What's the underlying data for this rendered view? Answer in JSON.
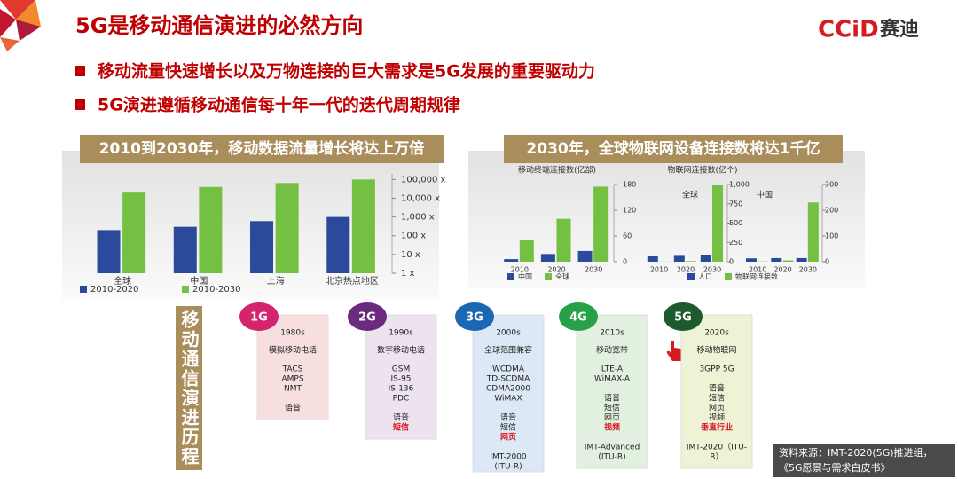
{
  "header": {
    "title": "5G是移动通信演进的必然方向",
    "logo": "CCiD",
    "logo_cn": "赛迪"
  },
  "bullets": [
    "移动流量快速增长以及万物连接的巨大需求是5G发展的重要驱动力",
    "5G演进遵循移动通信每十年一代的迭代周期规律"
  ],
  "banners": [
    "2010到2030年，移动数据流量增长将达上万倍",
    "2030年，全球物联网设备连接数将达1千亿"
  ],
  "chart_data": [
    {
      "type": "bar",
      "categories": [
        "全球",
        "中国",
        "上海",
        "北京热点地区"
      ],
      "series": [
        {
          "name": "2010-2020",
          "color": "#2c4a9c",
          "values": [
            200,
            300,
            600,
            1000
          ]
        },
        {
          "name": "2010-2030",
          "color": "#74c043",
          "values": [
            20000,
            40000,
            65000,
            100000
          ]
        }
      ],
      "ylim": [
        1,
        200000
      ],
      "yticks": [
        {
          "value": 1,
          "label": "1 x"
        },
        {
          "value": 10,
          "label": "10 x"
        },
        {
          "value": 100,
          "label": "100 x"
        },
        {
          "value": 1000,
          "label": "1,000 x"
        },
        {
          "value": 10000,
          "label": "10,000 x"
        },
        {
          "value": 100000,
          "label": "100,000 x"
        }
      ],
      "log": true,
      "legend": "bottom-left"
    },
    {
      "type": "bar",
      "title": "移动终端连接数(亿部)",
      "categories": [
        "2010",
        "2020",
        "2030"
      ],
      "series": [
        {
          "name": "中国",
          "color": "#2c4a9c",
          "values": [
            6,
            18,
            25
          ]
        },
        {
          "name": "全球",
          "color": "#74c043",
          "values": [
            50,
            100,
            175
          ]
        }
      ],
      "ylim": [
        0,
        180
      ],
      "yticks": [
        0,
        60,
        120,
        180
      ],
      "legend": "bottom-left"
    },
    {
      "type": "bar",
      "title": "物联网连接数(亿个)",
      "annotation": "全球",
      "categories": [
        "2010",
        "2020",
        "2030"
      ],
      "series": [
        {
          "name": "人口",
          "color": "#2c4a9c",
          "values": [
            69,
            76,
            85
          ]
        },
        {
          "name": "物联网连接数",
          "color": "#74c043",
          "values": [
            2,
            8,
            1000
          ]
        }
      ],
      "ylim": [
        0,
        1000
      ],
      "yticks": [
        0,
        250,
        500,
        750,
        {
          "value": 1000,
          "label": "1,000"
        }
      ],
      "legend": "bottom-left"
    },
    {
      "type": "bar",
      "annotation": "中国",
      "categories": [
        "2010",
        "2020",
        "2030"
      ],
      "series": [
        {
          "color": "#2c4a9c",
          "values": [
            13,
            14,
            14
          ]
        },
        {
          "color": "#74c043",
          "values": [
            1,
            5,
            230
          ]
        }
      ],
      "ylim": [
        0,
        300
      ],
      "yticks": [
        0,
        100,
        200,
        300
      ]
    }
  ],
  "timeline": {
    "label": "移动通信演进历程",
    "generations": [
      {
        "label": "1G",
        "color": "#d4246e",
        "card_color": "#f7dfe0",
        "decade": "1980s",
        "tech": "模拟移动电话",
        "standards": [
          "TACS",
          "AMPS",
          "NMT"
        ],
        "services": [
          "语音"
        ]
      },
      {
        "label": "2G",
        "color": "#6a2a7e",
        "card_color": "#ece3ef",
        "decade": "1990s",
        "tech": "数字移动电话",
        "standards": [
          "GSM",
          "IS-95",
          "IS-136",
          "PDC"
        ],
        "services": [
          "语音",
          "短信"
        ],
        "highlight_index": 1
      },
      {
        "label": "3G",
        "color": "#1a67b3",
        "card_color": "#dce8f5",
        "decade": "2000s",
        "tech": "全球范围兼容",
        "standards": [
          "WCDMA",
          "TD-SCDMA",
          "CDMA2000",
          "WiMAX"
        ],
        "services": [
          "语音",
          "短信",
          "网页"
        ],
        "highlight_index": 2,
        "itu": [
          "IMT-2000",
          "(ITU-R)"
        ]
      },
      {
        "label": "4G",
        "color": "#27a148",
        "card_color": "#e2f1df",
        "decade": "2010s",
        "tech": "移动宽带",
        "standards": [
          "LTE-A",
          "WiMAX-A"
        ],
        "services": [
          "语音",
          "短信",
          "网页",
          "视频"
        ],
        "highlight_index": 3,
        "itu": [
          "IMT-Advanced",
          "(ITU-R)"
        ]
      },
      {
        "label": "5G",
        "color": "#1e5a2f",
        "card_color": "#eef3d6",
        "decade": "2020s",
        "tech": "移动物联网",
        "standards": [
          "3GPP 5G"
        ],
        "services": [
          "语音",
          "短信",
          "网页",
          "视频",
          "垂直行业"
        ],
        "highlight_index": 4,
        "itu": [
          "IMT-2020（ITU-",
          "R）"
        ]
      }
    ]
  },
  "source": [
    "资料来源：IMT-2020(5G)推进组，",
    "《5G愿景与需求白皮书》"
  ]
}
